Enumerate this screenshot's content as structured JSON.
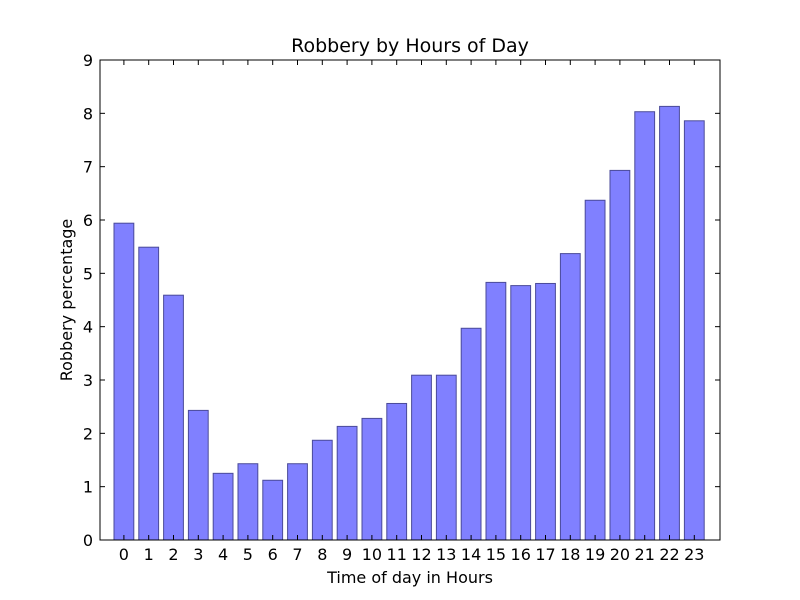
{
  "chart_data": {
    "type": "bar",
    "title": "Robbery by Hours of Day",
    "xlabel": "Time of day in Hours",
    "ylabel": "Robbery percentage",
    "categories": [
      "0",
      "1",
      "2",
      "3",
      "4",
      "5",
      "6",
      "7",
      "8",
      "9",
      "10",
      "11",
      "12",
      "13",
      "14",
      "15",
      "16",
      "17",
      "18",
      "19",
      "20",
      "21",
      "22",
      "23"
    ],
    "values": [
      5.94,
      5.49,
      4.59,
      2.43,
      1.25,
      1.43,
      1.12,
      1.43,
      1.87,
      2.13,
      2.28,
      2.56,
      3.09,
      3.09,
      3.97,
      4.83,
      4.77,
      4.81,
      5.37,
      6.37,
      6.93,
      8.03,
      8.13,
      7.86
    ],
    "ylim": [
      0,
      9
    ],
    "yticks": [
      0,
      1,
      2,
      3,
      4,
      5,
      6,
      7,
      8,
      9
    ],
    "grid": false,
    "legend": "none",
    "colors": {
      "bar_fill": "#8080ff",
      "bar_edge": "#4a4a99",
      "axes": "#000000",
      "background": "#ffffff"
    }
  }
}
